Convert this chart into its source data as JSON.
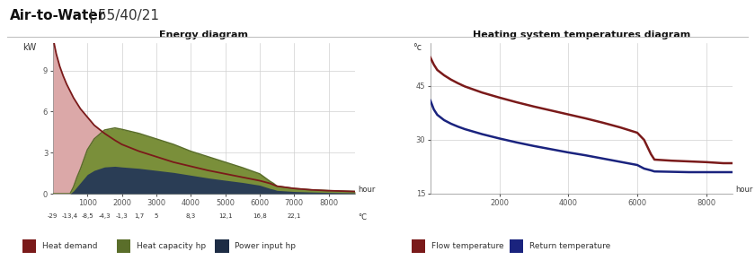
{
  "title_bold": "Air-to-Water",
  "title_sep": "|",
  "title_normal": "55/40/21",
  "left_title": "Energy diagram",
  "right_title": "Heating system temperatures diagram",
  "background_color": "#ffffff",
  "grid_color": "#d0d0d0",
  "energy": {
    "hours": [
      0,
      50,
      100,
      200,
      300,
      400,
      500,
      600,
      700,
      800,
      900,
      1000,
      1200,
      1500,
      1800,
      2000,
      2500,
      3000,
      3500,
      4000,
      4500,
      5000,
      5500,
      6000,
      6300,
      6400,
      6500,
      7000,
      7500,
      8000,
      8500,
      8760
    ],
    "heat_demand": [
      11.5,
      10.8,
      10.2,
      9.3,
      8.6,
      8.0,
      7.5,
      7.0,
      6.6,
      6.2,
      5.9,
      5.6,
      5.0,
      4.4,
      3.9,
      3.6,
      3.1,
      2.7,
      2.3,
      2.0,
      1.7,
      1.45,
      1.2,
      0.95,
      0.75,
      0.65,
      0.55,
      0.38,
      0.28,
      0.22,
      0.18,
      0.16
    ],
    "heat_capacity_hp": [
      0,
      0,
      0,
      0,
      0,
      0,
      0,
      0.5,
      1.2,
      1.8,
      2.5,
      3.2,
      4.0,
      4.65,
      4.8,
      4.7,
      4.4,
      4.0,
      3.6,
      3.1,
      2.7,
      2.3,
      1.9,
      1.45,
      0.9,
      0.75,
      0.55,
      0.38,
      0.28,
      0.22,
      0.18,
      0.16
    ],
    "power_input_hp": [
      0,
      0,
      0,
      0,
      0,
      0,
      0,
      0.2,
      0.5,
      0.8,
      1.1,
      1.4,
      1.7,
      1.95,
      2.0,
      1.95,
      1.85,
      1.7,
      1.55,
      1.35,
      1.15,
      0.98,
      0.82,
      0.62,
      0.38,
      0.32,
      0.24,
      0.16,
      0.12,
      0.09,
      0.07,
      0.06
    ],
    "heat_demand_color": "#7a1a1a",
    "heat_demand_fill": "#dba8a8",
    "heat_capacity_color": "#5a6e2a",
    "heat_capacity_fill": "#7a8f3a",
    "power_input_color": "#1e2d45",
    "power_input_fill": "#2a3d55",
    "ylabel": "kW",
    "xlabel_hours": "hour",
    "xlabel_temps": "°C",
    "yticks": [
      0,
      3,
      6,
      9
    ],
    "hour_ticks": [
      1000,
      2000,
      3000,
      4000,
      5000,
      6000,
      7000,
      8000
    ],
    "temp_ticks": [
      "-29",
      "-13,4",
      "-8,5",
      "-4,3",
      "-1,3",
      "1,7",
      "5",
      "8,3",
      "12,1",
      "16,8",
      "22,1"
    ],
    "temp_tick_hours": [
      0,
      500,
      1000,
      1500,
      2000,
      2500,
      3000,
      4000,
      5000,
      6000,
      7000
    ],
    "xlim": [
      0,
      8760
    ],
    "ylim": [
      0,
      11
    ]
  },
  "temperatures": {
    "hours": [
      0,
      100,
      200,
      400,
      600,
      800,
      1000,
      1500,
      2000,
      2500,
      3000,
      3500,
      4000,
      4500,
      5000,
      5500,
      6000,
      6200,
      6400,
      6500,
      7000,
      7500,
      8000,
      8500,
      8760
    ],
    "flow_temp": [
      53,
      51,
      49.5,
      48,
      46.8,
      45.8,
      44.9,
      43.2,
      41.8,
      40.5,
      39.3,
      38.2,
      37.1,
      36.0,
      34.8,
      33.5,
      32.0,
      30.0,
      26.0,
      24.5,
      24.2,
      24.0,
      23.8,
      23.5,
      23.5
    ],
    "return_temp": [
      41,
      38.5,
      37,
      35.5,
      34.5,
      33.7,
      33.0,
      31.6,
      30.4,
      29.3,
      28.3,
      27.4,
      26.5,
      25.7,
      24.8,
      23.9,
      23.0,
      22.0,
      21.5,
      21.2,
      21.1,
      21.0,
      21.0,
      21.0,
      21.0
    ],
    "flow_color": "#7a1a1a",
    "return_color": "#1a237e",
    "ylabel": "°c",
    "xlabel": "hour",
    "yticks": [
      15,
      30,
      45
    ],
    "hour_ticks": [
      2000,
      4000,
      6000,
      8000
    ],
    "xlim": [
      0,
      8760
    ],
    "ylim": [
      15,
      57
    ]
  },
  "legend_left": [
    {
      "label": "Heat demand",
      "color": "#7a1a1a"
    },
    {
      "label": "Heat capacity hp",
      "color": "#5a6e2a"
    },
    {
      "label": "Power input hp",
      "color": "#1e2d45"
    }
  ],
  "legend_right": [
    {
      "label": "Flow temperature",
      "color": "#7a1a1a"
    },
    {
      "label": "Return temperature",
      "color": "#1a237e"
    }
  ]
}
